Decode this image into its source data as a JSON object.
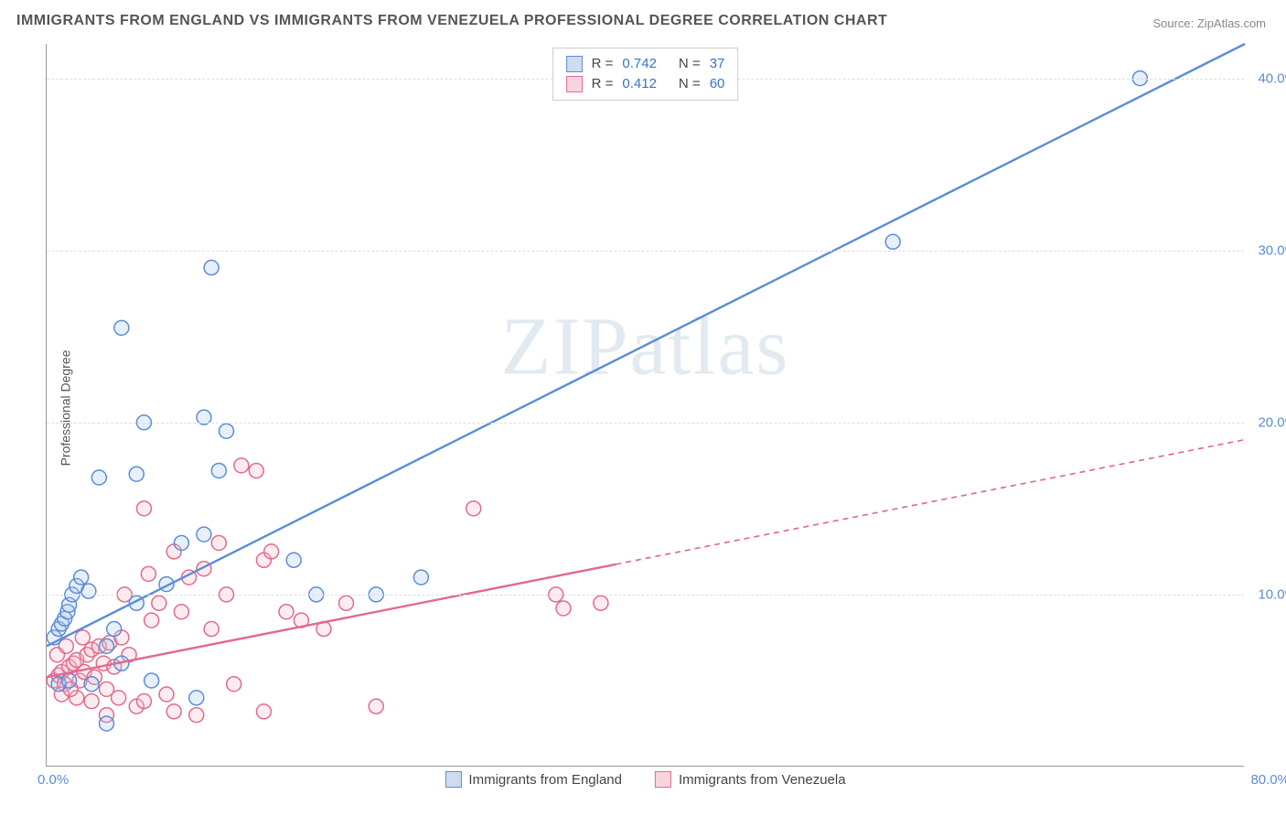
{
  "title": "IMMIGRANTS FROM ENGLAND VS IMMIGRANTS FROM VENEZUELA PROFESSIONAL DEGREE CORRELATION CHART",
  "source": "Source: ZipAtlas.com",
  "yaxis_label": "Professional Degree",
  "watermark": "ZIPatlas",
  "chart": {
    "type": "scatter",
    "xlim": [
      0,
      80
    ],
    "ylim": [
      0,
      42
    ],
    "x_tick_left": "0.0%",
    "x_tick_right": "80.0%",
    "y_ticks": [
      {
        "v": 10,
        "label": "10.0%"
      },
      {
        "v": 20,
        "label": "20.0%"
      },
      {
        "v": 30,
        "label": "30.0%"
      },
      {
        "v": 40,
        "label": "40.0%"
      }
    ],
    "background_color": "#ffffff",
    "grid_color": "#dddddd",
    "axis_color": "#999999",
    "tick_color": "#5b8dd6",
    "marker_radius": 8,
    "marker_stroke_width": 1.5,
    "marker_fill_opacity": 0.28,
    "trend_line_width": 2.4,
    "series": [
      {
        "name": "Immigrants from England",
        "color_stroke": "#5b8dd6",
        "color_fill": "#a9c5ea",
        "swatch_fill": "#cddcf1",
        "swatch_border": "#5b8dd6",
        "R": "0.742",
        "N": "37",
        "trend": {
          "x1": 0,
          "y1": 7,
          "x2": 80,
          "y2": 42,
          "dash": "none",
          "solid_until_x": 80
        },
        "points": [
          [
            0.5,
            7.5
          ],
          [
            0.8,
            8.0
          ],
          [
            1.0,
            8.3
          ],
          [
            1.2,
            8.6
          ],
          [
            1.4,
            9.0
          ],
          [
            1.5,
            9.4
          ],
          [
            1.7,
            10.0
          ],
          [
            2.0,
            10.5
          ],
          [
            2.3,
            11.0
          ],
          [
            2.8,
            10.2
          ],
          [
            0.8,
            4.8
          ],
          [
            1.5,
            5.0
          ],
          [
            3.0,
            4.8
          ],
          [
            4.0,
            7.0
          ],
          [
            4.5,
            8.0
          ],
          [
            5.0,
            6.0
          ],
          [
            6.0,
            9.5
          ],
          [
            7.0,
            5.0
          ],
          [
            8.0,
            10.6
          ],
          [
            3.5,
            16.8
          ],
          [
            6.0,
            17.0
          ],
          [
            6.5,
            20.0
          ],
          [
            10.5,
            20.3
          ],
          [
            12.0,
            19.5
          ],
          [
            11.5,
            17.2
          ],
          [
            9.0,
            13.0
          ],
          [
            10.5,
            13.5
          ],
          [
            5.0,
            25.5
          ],
          [
            11.0,
            29.0
          ],
          [
            16.5,
            12.0
          ],
          [
            18.0,
            10.0
          ],
          [
            22.0,
            10.0
          ],
          [
            25.0,
            11.0
          ],
          [
            10.0,
            4.0
          ],
          [
            4.0,
            2.5
          ],
          [
            56.5,
            30.5
          ],
          [
            73.0,
            40.0
          ]
        ]
      },
      {
        "name": "Immigrants from Venezuela",
        "color_stroke": "#e26a8c",
        "color_fill": "#f3b9c9",
        "swatch_fill": "#f7d5df",
        "swatch_border": "#e26a8c",
        "R": "0.412",
        "N": "60",
        "trend": {
          "x1": 0,
          "y1": 5.2,
          "x2": 80,
          "y2": 19.0,
          "dash": "6 5",
          "solid_until_x": 38
        },
        "points": [
          [
            0.5,
            5.0
          ],
          [
            0.8,
            5.3
          ],
          [
            1.0,
            5.5
          ],
          [
            1.2,
            4.8
          ],
          [
            1.5,
            5.8
          ],
          [
            1.8,
            6.0
          ],
          [
            2.0,
            6.2
          ],
          [
            2.2,
            5.0
          ],
          [
            2.5,
            5.5
          ],
          [
            2.7,
            6.5
          ],
          [
            3.0,
            6.8
          ],
          [
            3.2,
            5.2
          ],
          [
            3.5,
            7.0
          ],
          [
            3.8,
            6.0
          ],
          [
            4.0,
            4.5
          ],
          [
            4.2,
            7.2
          ],
          [
            4.5,
            5.8
          ],
          [
            4.8,
            4.0
          ],
          [
            5.0,
            7.5
          ],
          [
            5.5,
            6.5
          ],
          [
            6.0,
            3.5
          ],
          [
            6.5,
            3.8
          ],
          [
            7.0,
            8.5
          ],
          [
            7.5,
            9.5
          ],
          [
            8.0,
            4.2
          ],
          [
            8.5,
            3.2
          ],
          [
            9.0,
            9.0
          ],
          [
            9.5,
            11.0
          ],
          [
            10.0,
            3.0
          ],
          [
            10.5,
            11.5
          ],
          [
            11.0,
            8.0
          ],
          [
            6.5,
            15.0
          ],
          [
            8.5,
            12.5
          ],
          [
            11.5,
            13.0
          ],
          [
            12.0,
            10.0
          ],
          [
            12.5,
            4.8
          ],
          [
            13.0,
            17.5
          ],
          [
            14.0,
            17.2
          ],
          [
            14.5,
            12.0
          ],
          [
            15.0,
            12.5
          ],
          [
            16.0,
            9.0
          ],
          [
            17.0,
            8.5
          ],
          [
            18.5,
            8.0
          ],
          [
            20.0,
            9.5
          ],
          [
            22.0,
            3.5
          ],
          [
            14.5,
            3.2
          ],
          [
            28.5,
            15.0
          ],
          [
            34.0,
            10.0
          ],
          [
            34.5,
            9.2
          ],
          [
            37.0,
            9.5
          ],
          [
            3.0,
            3.8
          ],
          [
            4.0,
            3.0
          ],
          [
            2.0,
            4.0
          ],
          [
            1.0,
            4.2
          ],
          [
            0.7,
            6.5
          ],
          [
            1.3,
            7.0
          ],
          [
            1.6,
            4.5
          ],
          [
            2.4,
            7.5
          ],
          [
            5.2,
            10.0
          ],
          [
            6.8,
            11.2
          ]
        ]
      }
    ],
    "legend_top_labels": {
      "R": "R =",
      "N": "N ="
    },
    "legend_bottom": [
      "Immigrants from England",
      "Immigrants from Venezuela"
    ]
  }
}
